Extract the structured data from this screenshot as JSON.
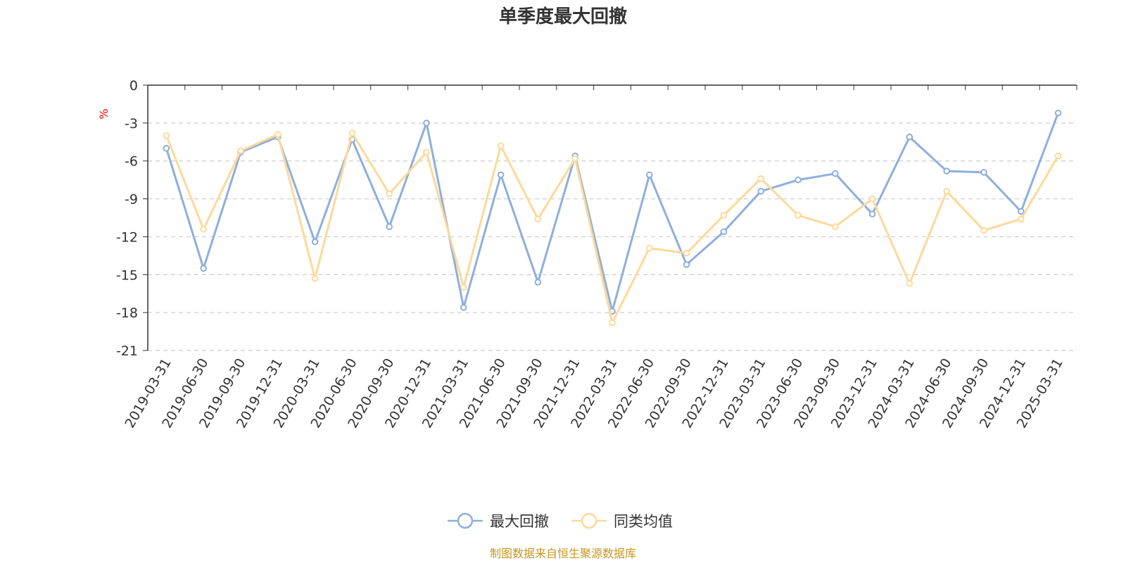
{
  "chart_data": {
    "type": "line",
    "title": "单季度最大回撤",
    "ylabel": "%",
    "xlabel": "",
    "ylim": [
      -21,
      0
    ],
    "yticks": [
      0,
      -3,
      -6,
      -9,
      -12,
      -15,
      -18,
      -21
    ],
    "grid": true,
    "legend_position": "bottom-center",
    "categories": [
      "2019-03-31",
      "2019-06-30",
      "2019-09-30",
      "2019-12-31",
      "2020-03-31",
      "2020-06-30",
      "2020-09-30",
      "2020-12-31",
      "2021-03-31",
      "2021-06-30",
      "2021-09-30",
      "2021-12-31",
      "2022-03-31",
      "2022-06-30",
      "2022-09-30",
      "2022-12-31",
      "2023-03-31",
      "2023-06-30",
      "2023-09-30",
      "2023-12-31",
      "2024-03-31",
      "2024-06-30",
      "2024-09-30",
      "2024-12-31",
      "2025-03-31"
    ],
    "series": [
      {
        "name": "最大回撤",
        "color": "#8eaedd",
        "values": [
          -5.0,
          -14.5,
          -5.3,
          -4.1,
          -12.4,
          -4.3,
          -11.2,
          -3.0,
          -17.6,
          -7.1,
          -15.6,
          -5.6,
          -17.9,
          -7.1,
          -14.2,
          -11.6,
          -8.4,
          -7.5,
          -7.0,
          -10.2,
          -4.1,
          -6.8,
          -6.9,
          -10.0,
          -2.2
        ]
      },
      {
        "name": "同类均值",
        "color": "#fcd99a",
        "values": [
          -4.0,
          -11.4,
          -5.2,
          -3.9,
          -15.3,
          -3.8,
          -8.6,
          -5.3,
          -16.0,
          -4.8,
          -10.6,
          -5.8,
          -18.8,
          -12.9,
          -13.3,
          -10.3,
          -7.4,
          -10.3,
          -11.2,
          -9.0,
          -15.7,
          -8.4,
          -11.5,
          -10.6,
          -5.6
        ]
      }
    ]
  },
  "footer": {
    "source": "制图数据来自恒生聚源数据库"
  },
  "colors": {
    "axis": "#333333",
    "grid": "#cccccc",
    "unit": "#ff0000",
    "source": "#c8961f",
    "background": "#ffffff"
  }
}
